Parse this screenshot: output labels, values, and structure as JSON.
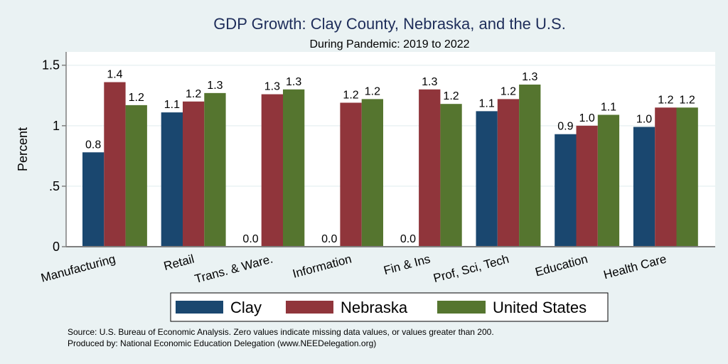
{
  "chart_data": {
    "type": "bar",
    "title": "GDP Growth: Clay County, Nebraska, and the U.S.",
    "subtitle": "During Pandemic: 2019 to 2022",
    "xlabel": "",
    "ylabel": "Percent",
    "ylim": [
      0,
      1.61
    ],
    "yticks": [
      0,
      0.5,
      1,
      1.5
    ],
    "ytick_labels": [
      "0",
      ".5",
      "1",
      "1.5"
    ],
    "grid": true,
    "legend_position": "bottom",
    "categories": [
      "Manufacturing",
      "Retail",
      "Trans. & Ware.",
      "Information",
      "Fin & Ins",
      "Prof, Sci, Tech",
      "Education",
      "Health Care"
    ],
    "series": [
      {
        "name": "Clay",
        "color": "#1a476f",
        "values": [
          0.78,
          1.11,
          0.0,
          0.0,
          0.0,
          1.12,
          0.93,
          0.99
        ],
        "labels": [
          "0.8",
          "1.1",
          "0.0",
          "0.0",
          "0.0",
          "1.1",
          "0.9",
          "1.0"
        ]
      },
      {
        "name": "Nebraska",
        "color": "#90353b",
        "values": [
          1.36,
          1.2,
          1.26,
          1.19,
          1.3,
          1.22,
          1.0,
          1.15
        ],
        "labels": [
          "1.4",
          "1.2",
          "1.3",
          "1.2",
          "1.3",
          "1.2",
          "1.0",
          "1.2"
        ]
      },
      {
        "name": "United States",
        "color": "#55752f",
        "values": [
          1.17,
          1.27,
          1.3,
          1.22,
          1.18,
          1.34,
          1.09,
          1.15
        ],
        "labels": [
          "1.2",
          "1.3",
          "1.3",
          "1.2",
          "1.2",
          "1.3",
          "1.1",
          "1.2"
        ]
      }
    ],
    "notes": [
      "Source: U.S. Bureau of Economic Analysis. Zero values indicate missing data values, or values greater than 200.",
      "Produced by: National Economic Education Delegation (www.NEEDelegation.org)"
    ]
  },
  "colors": {
    "background": "#eaf2f3",
    "plot_background": "#ffffff",
    "title": "#1e2d5a",
    "gridline": "#eaf2f3",
    "axis": "#7f7f7f"
  }
}
